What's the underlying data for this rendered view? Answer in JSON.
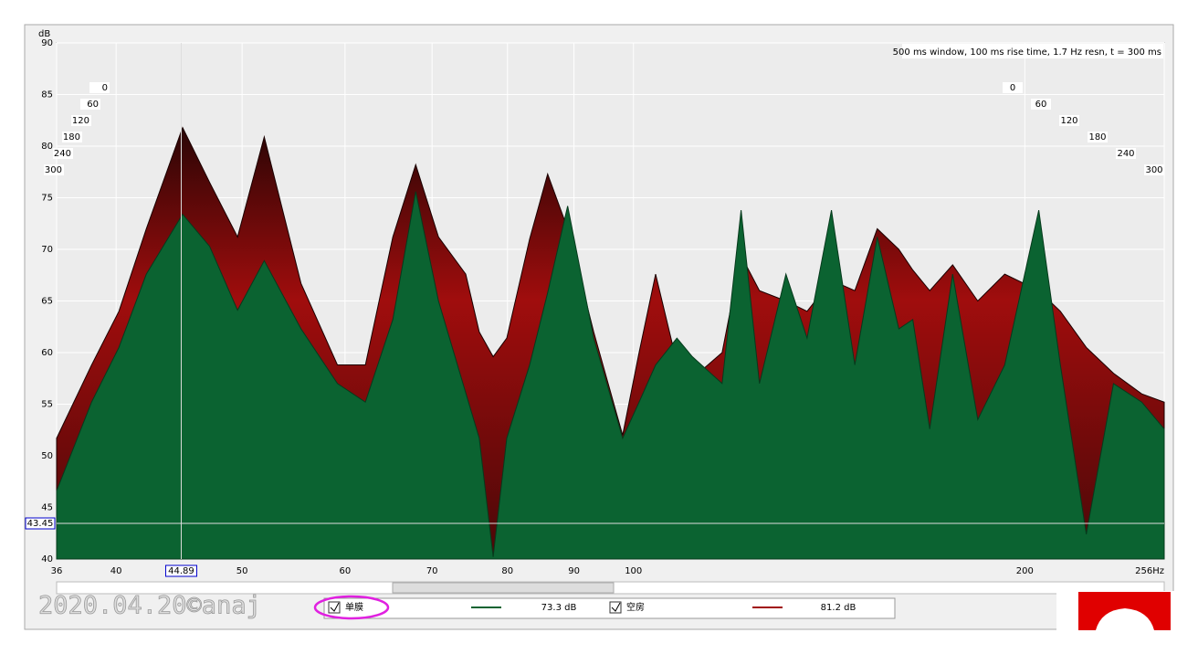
{
  "chart_data": {
    "type": "waterfall",
    "y_unit": "dB",
    "info": "500 ms window, 100 ms rise time,  1.7 Hz resn, t = 300 ms",
    "watermark": "2020.04.20©anaj",
    "xlim": [
      36,
      256
    ],
    "ylim": [
      40,
      90
    ],
    "x_log": true,
    "grid": true,
    "xticks": [
      36,
      40,
      50,
      60,
      70,
      80,
      90,
      100,
      200,
      {
        "value": 256,
        "label": "256Hz"
      }
    ],
    "yticks": [
      40,
      45,
      50,
      55,
      60,
      65,
      70,
      75,
      80,
      85,
      90
    ],
    "depth_ticks": [
      0,
      60,
      120,
      180,
      240,
      300
    ],
    "cursor_x": 44.89,
    "cursor_y": 43.45,
    "x": [
      36,
      38.3,
      40.2,
      42.2,
      45,
      47.2,
      49.6,
      52,
      55.5,
      59.2,
      62.2,
      65.3,
      68,
      70.8,
      74.3,
      76.1,
      78,
      79.9,
      83.2,
      85.9,
      89,
      93.2,
      98.1,
      101,
      104,
      108,
      111,
      117,
      121,
      125,
      131,
      136,
      142,
      148,
      154,
      160,
      164,
      169,
      176,
      184,
      193,
      205,
      213,
      223,
      234,
      246,
      256
    ],
    "series": [
      {
        "name": "单膜",
        "color": "#0b6331",
        "readout": "73.3 dB",
        "values": [
          46.6,
          55.2,
          60.5,
          67.6,
          73.4,
          70.3,
          64.1,
          68.9,
          62.3,
          57,
          55.2,
          63.2,
          75.6,
          65,
          56.1,
          51.7,
          40.2,
          51.7,
          58.8,
          65.8,
          74.2,
          61.4,
          51.7,
          55.2,
          58.8,
          61.4,
          59.6,
          57,
          73.8,
          57,
          67.6,
          61.4,
          73.8,
          58.8,
          71.2,
          62.3,
          63.2,
          52.6,
          67.6,
          53.5,
          58.8,
          73.8,
          58.8,
          42.4,
          57,
          55.2,
          52.6
        ]
      },
      {
        "name": "空房",
        "color": "#a00d0d",
        "readout": "81.2 dB",
        "values": [
          51.7,
          58.8,
          64,
          72,
          81.8,
          76.5,
          71.2,
          80.9,
          66.7,
          58.8,
          58.8,
          71.2,
          78.2,
          71.2,
          67.6,
          62,
          59.6,
          61.4,
          71,
          77.3,
          72,
          62,
          52,
          60,
          67.6,
          59,
          57.5,
          60,
          69.4,
          66,
          65,
          64,
          67,
          66,
          72,
          70,
          68,
          66,
          68.5,
          65,
          67.6,
          66,
          64,
          60.5,
          58,
          56,
          55.2
        ]
      }
    ]
  }
}
